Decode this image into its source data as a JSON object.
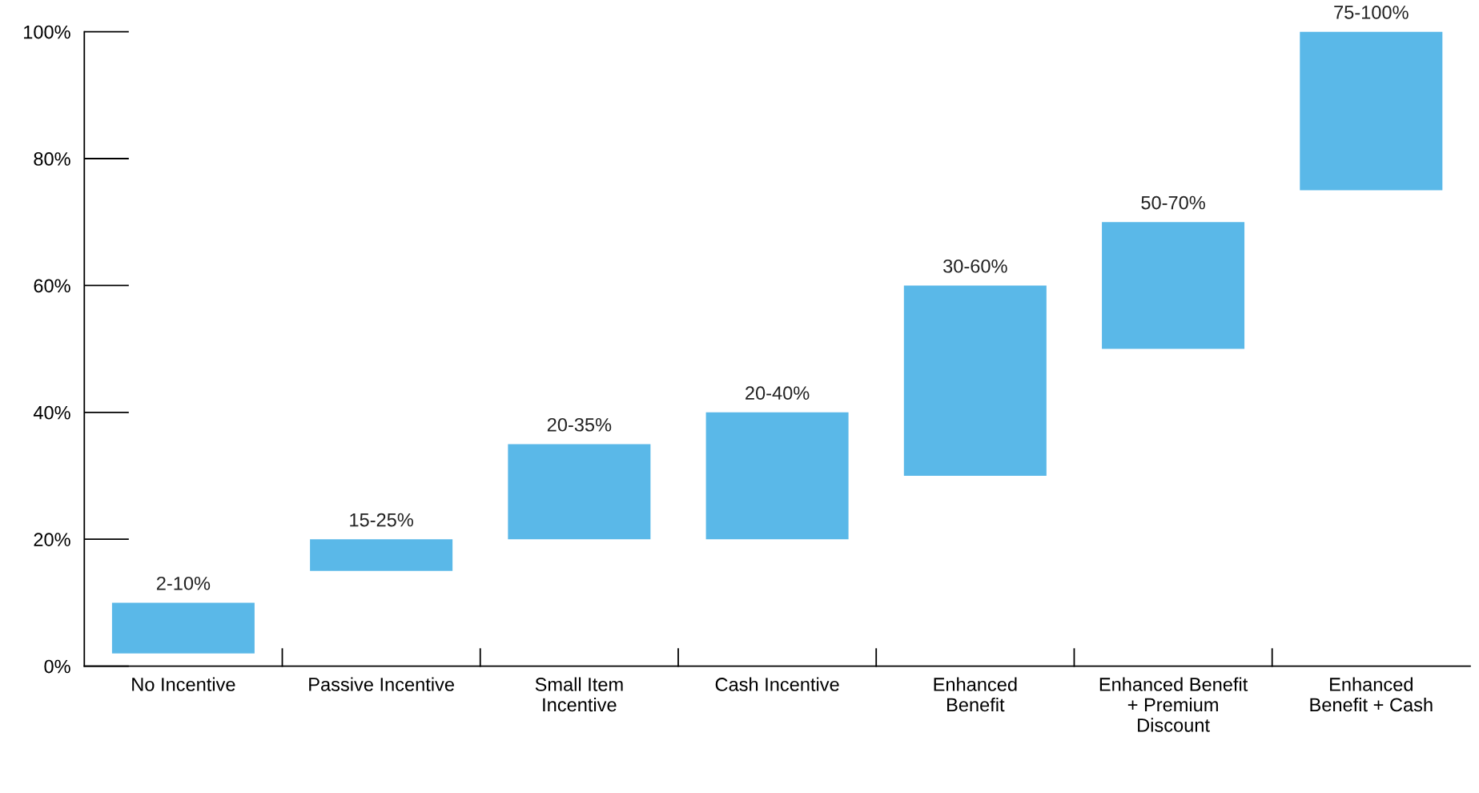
{
  "chart_data": {
    "type": "bar",
    "categories": [
      "No Incentive",
      "Passive Incentive",
      "Small Item\nIncentive",
      "Cash Incentive",
      "Enhanced\nBenefit",
      "Enhanced Benefit\n+ Premium\nDiscount",
      "Enhanced\nBenefit + Cash"
    ],
    "base": [
      2,
      15,
      20,
      20,
      30,
      50,
      75
    ],
    "values": [
      8,
      5,
      15,
      20,
      30,
      20,
      25
    ],
    "annotations": [
      {
        "text": "2-10%",
        "x": "No Incentive",
        "y": 10
      },
      {
        "text": "15-25%",
        "x": "Passive Incentive",
        "y": 20
      },
      {
        "text": "20-35%",
        "x": "Small Item\nIncentive",
        "y": 35
      },
      {
        "text": "20-40%",
        "x": "Cash Incentive",
        "y": 40
      },
      {
        "text": "30-60%",
        "x": "Enhanced\nBenefit",
        "y": 60
      },
      {
        "text": "50-70%",
        "x": "Enhanced Benefit\n+ Premium\nDiscount",
        "y": 70
      },
      {
        "text": "75-100%",
        "x": "Enhanced\nBenefit + Cash",
        "y": 100
      }
    ],
    "color": "#5ab8e8",
    "ylim": [
      0,
      100
    ],
    "yticks": [
      {
        "value": 0,
        "label": "0%"
      },
      {
        "value": 20,
        "label": "20%"
      },
      {
        "value": 40,
        "label": "40%"
      },
      {
        "value": 60,
        "label": "60%"
      },
      {
        "value": 80,
        "label": "80%"
      },
      {
        "value": 100,
        "label": "100%"
      }
    ],
    "grid": false
  }
}
